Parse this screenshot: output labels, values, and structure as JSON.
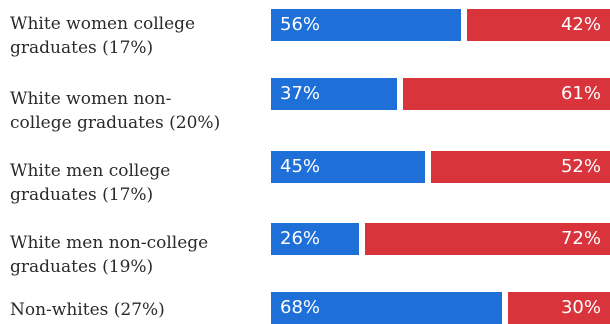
{
  "chart_data": {
    "type": "bar",
    "orientation": "horizontal",
    "stacked": true,
    "categories": [
      [
        "White women college",
        "graduates (17%)"
      ],
      [
        "White women non-",
        "college graduates (20%)"
      ],
      [
        "White men college",
        "graduates (17%)"
      ],
      [
        "White men non-college",
        "graduates (19%)"
      ],
      [
        "Non-whites (27%)"
      ]
    ],
    "series": [
      {
        "values": [
          56,
          37,
          45,
          26,
          68
        ],
        "labels": [
          "56%",
          "37%",
          "45%",
          "26%",
          "68%"
        ],
        "color": "#1f6fd8"
      },
      {
        "values": [
          42,
          61,
          52,
          72,
          30
        ],
        "labels": [
          "42%",
          "61%",
          "52%",
          "72%",
          "30%"
        ],
        "color": "#d9333b"
      }
    ],
    "xlim": [
      0,
      100
    ],
    "grid": false,
    "legend": "none"
  }
}
